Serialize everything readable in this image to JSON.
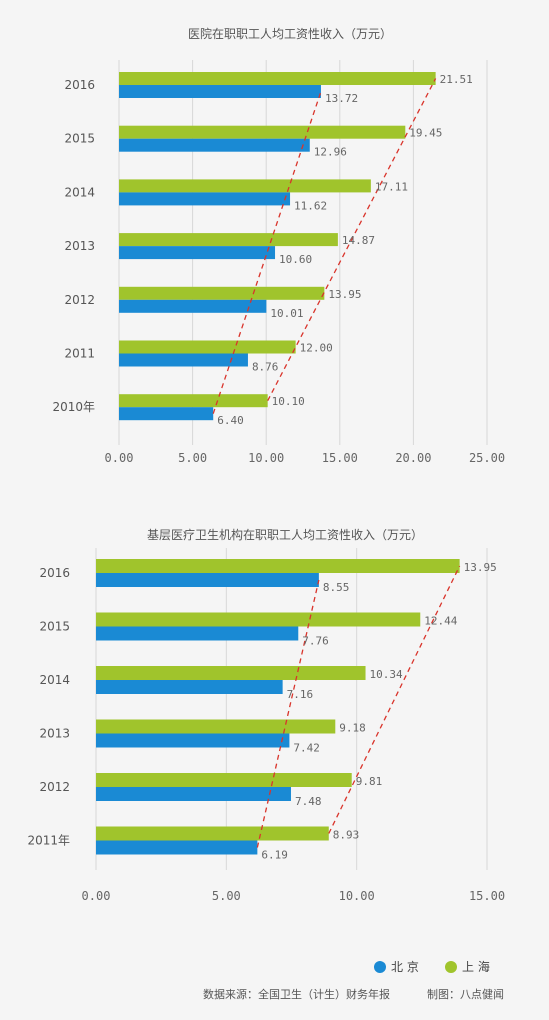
{
  "charts": [
    {
      "title": "医院在职职工人均工资性收入（万元）"
    },
    {
      "title": "基层医疗卫生机构在职职工人均工资性收入（万元）"
    }
  ],
  "legend": [
    {
      "name": "北 京",
      "color": "#1a8ad4"
    },
    {
      "name": "上 海",
      "color": "#a0c42c"
    }
  ],
  "source": "数据来源：全国卫生（计生）财务年报",
  "credit": "制图：八点健闻",
  "colors": {
    "beijing": "#1a8ad4",
    "shanghai": "#a0c42c",
    "trend": "#d9342b"
  },
  "chart_data": [
    {
      "type": "bar",
      "orientation": "horizontal",
      "title": "医院在职职工人均工资性收入（万元）",
      "categories": [
        "2016",
        "2015",
        "2014",
        "2013",
        "2012",
        "2011",
        "2010年"
      ],
      "series": [
        {
          "name": "上 海",
          "values": [
            21.51,
            19.45,
            17.11,
            14.87,
            13.95,
            12.0,
            10.1
          ]
        },
        {
          "name": "北 京",
          "values": [
            13.72,
            12.96,
            11.62,
            10.6,
            10.01,
            8.76,
            6.4
          ]
        }
      ],
      "value_labels": {
        "上 海": [
          "21.51",
          "19.45",
          "17.11",
          "14.87",
          "13.95",
          "12.00",
          "10.10"
        ],
        "北 京": [
          "13.72",
          "12.96",
          "11.62",
          "10.60",
          "10.01",
          "8.76",
          "6.40"
        ]
      },
      "xticks": [
        0,
        5,
        10,
        15,
        20,
        25
      ],
      "xtick_labels": [
        "0.00",
        "5.00",
        "10.00",
        "15.00",
        "20.00",
        "25.00"
      ],
      "xlim": [
        0,
        25
      ],
      "grid": true,
      "trend_lines": "dashed red line through bar ends of each series"
    },
    {
      "type": "bar",
      "orientation": "horizontal",
      "title": "基层医疗卫生机构在职职工人均工资性收入（万元）",
      "categories": [
        "2016",
        "2015",
        "2014",
        "2013",
        "2012",
        "2011年"
      ],
      "series": [
        {
          "name": "上 海",
          "values": [
            13.95,
            12.44,
            10.34,
            9.18,
            9.81,
            8.93
          ]
        },
        {
          "name": "北 京",
          "values": [
            8.55,
            7.76,
            7.16,
            7.42,
            7.48,
            6.19
          ]
        }
      ],
      "value_labels": {
        "上 海": [
          "13.95",
          "12.44",
          "10.34",
          "9.18",
          "9.81",
          "8.93"
        ],
        "北 京": [
          "8.55",
          "7.76",
          "7.16",
          "7.42",
          "7.48",
          "6.19"
        ]
      },
      "xticks": [
        0,
        5,
        10,
        15
      ],
      "xtick_labels": [
        "0.00",
        "5.00",
        "10.00",
        "15.00"
      ],
      "xlim": [
        0,
        15
      ],
      "grid": true,
      "trend_lines": "dashed red line through bar ends of each series"
    }
  ]
}
